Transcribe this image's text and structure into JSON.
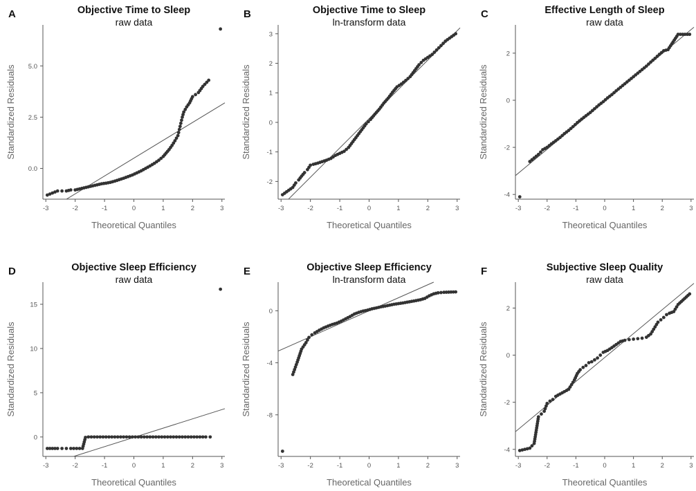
{
  "chart_data": [
    {
      "id": "A",
      "type": "scatter",
      "panel_label": "A",
      "title": "Objective Time to Sleep",
      "subtitle": "raw data",
      "xlabel": "Theoretical Quantiles",
      "ylabel": "Standardized Residuals",
      "xlim": [
        -3.1,
        3.1
      ],
      "ylim": [
        -1.5,
        7.0
      ],
      "x_ticks": [
        -3,
        -2,
        -1,
        0,
        1,
        2,
        3
      ],
      "x_tick_labels": [
        "-3",
        "-2",
        "-1",
        "0",
        "1",
        "2",
        "3"
      ],
      "y_ticks": [
        0,
        2.5,
        5
      ],
      "y_tick_labels": [
        "0.0",
        "2.5",
        "5.0"
      ],
      "reference_line": [
        [
          -3.1,
          -2.2
        ],
        [
          3.1,
          3.2
        ]
      ],
      "points": [
        [
          -2.95,
          -1.3
        ],
        [
          -2.6,
          -1.1
        ],
        [
          -2.45,
          -1.1
        ],
        [
          -2.3,
          -1.1
        ],
        [
          -2.15,
          -1.05
        ],
        [
          -2.0,
          -1.05
        ],
        [
          -1.85,
          -1.0
        ],
        [
          -1.7,
          -0.95
        ],
        [
          -1.55,
          -0.9
        ],
        [
          -1.4,
          -0.85
        ],
        [
          -1.25,
          -0.8
        ],
        [
          -1.1,
          -0.75
        ],
        [
          -0.95,
          -0.72
        ],
        [
          -0.8,
          -0.68
        ],
        [
          -0.65,
          -0.62
        ],
        [
          -0.5,
          -0.55
        ],
        [
          -0.35,
          -0.48
        ],
        [
          -0.2,
          -0.4
        ],
        [
          -0.05,
          -0.32
        ],
        [
          0.1,
          -0.22
        ],
        [
          0.25,
          -0.12
        ],
        [
          0.4,
          0.0
        ],
        [
          0.55,
          0.12
        ],
        [
          0.7,
          0.25
        ],
        [
          0.85,
          0.4
        ],
        [
          1.0,
          0.58
        ],
        [
          1.1,
          0.75
        ],
        [
          1.2,
          0.92
        ],
        [
          1.3,
          1.12
        ],
        [
          1.4,
          1.35
        ],
        [
          1.5,
          1.6
        ],
        [
          1.55,
          1.9
        ],
        [
          1.6,
          2.2
        ],
        [
          1.65,
          2.5
        ],
        [
          1.7,
          2.75
        ],
        [
          1.8,
          3.0
        ],
        [
          1.9,
          3.2
        ],
        [
          2.0,
          3.5
        ],
        [
          2.1,
          3.6
        ],
        [
          2.2,
          3.7
        ],
        [
          2.35,
          4.0
        ],
        [
          2.55,
          4.3
        ],
        [
          2.95,
          6.8
        ]
      ]
    },
    {
      "id": "B",
      "type": "scatter",
      "panel_label": "B",
      "title": "Objective Time to Sleep",
      "subtitle": "ln-transform data",
      "xlabel": "Theoretical Quantiles",
      "ylabel": "Standardized Residuals",
      "xlim": [
        -3.1,
        3.1
      ],
      "ylim": [
        -2.6,
        3.3
      ],
      "x_ticks": [
        -3,
        -2,
        -1,
        0,
        1,
        2,
        3
      ],
      "x_tick_labels": [
        "-3",
        "-2",
        "-1",
        "0",
        "1",
        "2",
        "3"
      ],
      "y_ticks": [
        -2,
        -1,
        0,
        1,
        2,
        3
      ],
      "y_tick_labels": [
        "-2",
        "-1",
        "0",
        "1",
        "2",
        "3"
      ],
      "reference_line": [
        [
          -3.1,
          -2.95
        ],
        [
          3.1,
          3.2
        ]
      ],
      "points": [
        [
          -2.95,
          -2.45
        ],
        [
          -2.6,
          -2.2
        ],
        [
          -2.5,
          -2.05
        ],
        [
          -2.4,
          -1.95
        ],
        [
          -2.3,
          -1.82
        ],
        [
          -2.2,
          -1.7
        ],
        [
          -2.1,
          -1.6
        ],
        [
          -2.0,
          -1.45
        ],
        [
          -1.9,
          -1.42
        ],
        [
          -1.75,
          -1.38
        ],
        [
          -1.6,
          -1.33
        ],
        [
          -1.45,
          -1.28
        ],
        [
          -1.3,
          -1.22
        ],
        [
          -1.15,
          -1.12
        ],
        [
          -1.0,
          -1.05
        ],
        [
          -0.85,
          -0.98
        ],
        [
          -0.7,
          -0.85
        ],
        [
          -0.55,
          -0.65
        ],
        [
          -0.4,
          -0.45
        ],
        [
          -0.25,
          -0.25
        ],
        [
          -0.1,
          -0.05
        ],
        [
          0.05,
          0.1
        ],
        [
          0.2,
          0.28
        ],
        [
          0.35,
          0.45
        ],
        [
          0.5,
          0.65
        ],
        [
          0.65,
          0.82
        ],
        [
          0.8,
          1.02
        ],
        [
          0.95,
          1.2
        ],
        [
          1.1,
          1.3
        ],
        [
          1.25,
          1.42
        ],
        [
          1.4,
          1.55
        ],
        [
          1.55,
          1.75
        ],
        [
          1.7,
          1.95
        ],
        [
          1.85,
          2.1
        ],
        [
          2.0,
          2.2
        ],
        [
          2.15,
          2.3
        ],
        [
          2.3,
          2.45
        ],
        [
          2.45,
          2.6
        ],
        [
          2.6,
          2.75
        ],
        [
          2.95,
          3.0
        ]
      ]
    },
    {
      "id": "C",
      "type": "scatter",
      "panel_label": "C",
      "title": "Effective Length of Sleep",
      "subtitle": "raw data",
      "xlabel": "Theoretical Quantiles",
      "ylabel": "Standardized Residuals",
      "xlim": [
        -3.1,
        3.1
      ],
      "ylim": [
        -4.2,
        3.2
      ],
      "x_ticks": [
        -3,
        -2,
        -1,
        0,
        1,
        2,
        3
      ],
      "x_tick_labels": [
        "-3",
        "-2",
        "-1",
        "0",
        "1",
        "2",
        "3"
      ],
      "y_ticks": [
        -4,
        -2,
        0,
        2
      ],
      "y_tick_labels": [
        "-4",
        "-2",
        "0",
        "2"
      ],
      "reference_line": [
        [
          -3.1,
          -3.2
        ],
        [
          3.1,
          3.1
        ]
      ],
      "points": [
        [
          -2.95,
          -4.1
        ],
        [
          -2.6,
          -2.6
        ],
        [
          -2.45,
          -2.45
        ],
        [
          -2.3,
          -2.3
        ],
        [
          -2.15,
          -2.1
        ],
        [
          -2.0,
          -2.0
        ],
        [
          -1.85,
          -1.85
        ],
        [
          -1.7,
          -1.72
        ],
        [
          -1.55,
          -1.58
        ],
        [
          -1.4,
          -1.42
        ],
        [
          -1.25,
          -1.28
        ],
        [
          -1.1,
          -1.12
        ],
        [
          -0.95,
          -0.95
        ],
        [
          -0.8,
          -0.8
        ],
        [
          -0.65,
          -0.66
        ],
        [
          -0.5,
          -0.52
        ],
        [
          -0.35,
          -0.36
        ],
        [
          -0.2,
          -0.2
        ],
        [
          -0.05,
          -0.06
        ],
        [
          0.1,
          0.1
        ],
        [
          0.25,
          0.24
        ],
        [
          0.4,
          0.4
        ],
        [
          0.55,
          0.55
        ],
        [
          0.7,
          0.7
        ],
        [
          0.85,
          0.85
        ],
        [
          1.0,
          1.0
        ],
        [
          1.15,
          1.15
        ],
        [
          1.3,
          1.3
        ],
        [
          1.45,
          1.45
        ],
        [
          1.6,
          1.62
        ],
        [
          1.75,
          1.78
        ],
        [
          1.9,
          1.95
        ],
        [
          2.05,
          2.1
        ],
        [
          2.2,
          2.15
        ],
        [
          2.55,
          2.8
        ],
        [
          2.95,
          2.8
        ]
      ]
    },
    {
      "id": "D",
      "type": "scatter",
      "panel_label": "D",
      "title": "Objective Sleep Efficiency",
      "subtitle": "raw data",
      "xlabel": "Theoretical Quantiles",
      "ylabel": "Standardized Residuals",
      "xlim": [
        -3.1,
        3.1
      ],
      "ylim": [
        -2.2,
        17.5
      ],
      "x_ticks": [
        -3,
        -2,
        -1,
        0,
        1,
        2,
        3
      ],
      "x_tick_labels": [
        "-3",
        "-2",
        "-1",
        "0",
        "1",
        "2",
        "3"
      ],
      "y_ticks": [
        0,
        5,
        10,
        15
      ],
      "y_tick_labels": [
        "0",
        "5",
        "10",
        "15"
      ],
      "reference_line": [
        [
          -3.1,
          -3.3
        ],
        [
          3.1,
          3.2
        ]
      ],
      "points": [
        [
          -2.95,
          -1.3
        ],
        [
          -2.6,
          -1.3
        ],
        [
          -2.45,
          -1.3
        ],
        [
          -2.3,
          -1.3
        ],
        [
          -2.15,
          -1.3
        ],
        [
          -2.05,
          -1.3
        ],
        [
          -1.95,
          -1.3
        ],
        [
          -1.85,
          -1.3
        ],
        [
          -1.75,
          -1.3
        ],
        [
          -1.65,
          -0.05
        ],
        [
          -1.55,
          0.0
        ],
        [
          -1.45,
          0.0
        ],
        [
          -1.35,
          0.0
        ],
        [
          -1.25,
          0.0
        ],
        [
          -1.15,
          0.0
        ],
        [
          -1.05,
          0.0
        ],
        [
          -0.95,
          0.0
        ],
        [
          -0.85,
          0.0
        ],
        [
          -0.75,
          0.0
        ],
        [
          -0.65,
          0.0
        ],
        [
          -0.55,
          0.0
        ],
        [
          -0.45,
          0.0
        ],
        [
          -0.35,
          0.0
        ],
        [
          -0.25,
          0.0
        ],
        [
          -0.15,
          0.0
        ],
        [
          -0.05,
          0.0
        ],
        [
          0.05,
          0.0
        ],
        [
          0.15,
          0.0
        ],
        [
          0.25,
          0.0
        ],
        [
          0.35,
          0.0
        ],
        [
          0.45,
          0.0
        ],
        [
          0.55,
          0.0
        ],
        [
          0.65,
          0.0
        ],
        [
          0.75,
          0.0
        ],
        [
          0.85,
          0.0
        ],
        [
          0.95,
          0.0
        ],
        [
          1.05,
          0.0
        ],
        [
          1.15,
          0.0
        ],
        [
          1.25,
          0.0
        ],
        [
          1.35,
          0.0
        ],
        [
          1.45,
          0.0
        ],
        [
          1.55,
          0.0
        ],
        [
          1.65,
          0.0
        ],
        [
          1.75,
          0.0
        ],
        [
          1.85,
          0.0
        ],
        [
          1.95,
          0.0
        ],
        [
          2.05,
          0.0
        ],
        [
          2.15,
          0.0
        ],
        [
          2.25,
          0.0
        ],
        [
          2.45,
          0.0
        ],
        [
          2.6,
          0.0
        ],
        [
          2.95,
          16.7
        ]
      ]
    },
    {
      "id": "E",
      "type": "scatter",
      "panel_label": "E",
      "title": "Objective Sleep Efficiency",
      "subtitle": "ln-transform data",
      "xlabel": "Theoretical Quantiles",
      "ylabel": "Standardized Residuals",
      "xlim": [
        -3.1,
        3.1
      ],
      "ylim": [
        -11.2,
        2.2
      ],
      "x_ticks": [
        -3,
        -2,
        -1,
        0,
        1,
        2,
        3
      ],
      "x_tick_labels": [
        "-3",
        "-2",
        "-1",
        "0",
        "1",
        "2",
        "3"
      ],
      "y_ticks": [
        -8,
        -4,
        0
      ],
      "y_tick_labels": [
        "-8",
        "-4",
        "0"
      ],
      "reference_line": [
        [
          -3.1,
          -3.1
        ],
        [
          2.2,
          2.2
        ]
      ],
      "points": [
        [
          -2.95,
          -10.8
        ],
        [
          -2.6,
          -4.9
        ],
        [
          -2.45,
          -3.95
        ],
        [
          -2.3,
          -2.95
        ],
        [
          -2.15,
          -2.45
        ],
        [
          -2.05,
          -2.05
        ],
        [
          -1.95,
          -1.85
        ],
        [
          -1.85,
          -1.7
        ],
        [
          -1.7,
          -1.5
        ],
        [
          -1.55,
          -1.32
        ],
        [
          -1.4,
          -1.18
        ],
        [
          -1.25,
          -1.05
        ],
        [
          -1.1,
          -0.95
        ],
        [
          -0.95,
          -0.8
        ],
        [
          -0.8,
          -0.62
        ],
        [
          -0.65,
          -0.45
        ],
        [
          -0.5,
          -0.25
        ],
        [
          -0.35,
          -0.12
        ],
        [
          -0.2,
          -0.02
        ],
        [
          -0.05,
          0.05
        ],
        [
          0.1,
          0.15
        ],
        [
          0.25,
          0.22
        ],
        [
          0.4,
          0.3
        ],
        [
          0.55,
          0.36
        ],
        [
          0.7,
          0.43
        ],
        [
          0.85,
          0.5
        ],
        [
          1.0,
          0.55
        ],
        [
          1.15,
          0.6
        ],
        [
          1.3,
          0.66
        ],
        [
          1.45,
          0.72
        ],
        [
          1.6,
          0.78
        ],
        [
          1.75,
          0.85
        ],
        [
          1.9,
          0.95
        ],
        [
          2.05,
          1.15
        ],
        [
          2.2,
          1.3
        ],
        [
          2.35,
          1.38
        ],
        [
          2.55,
          1.42
        ],
        [
          2.95,
          1.45
        ]
      ]
    },
    {
      "id": "F",
      "type": "scatter",
      "panel_label": "F",
      "title": "Subjective Sleep Quality",
      "subtitle": "raw data",
      "xlabel": "Theoretical Quantiles",
      "ylabel": "Standardized Residuals",
      "xlim": [
        -3.1,
        3.1
      ],
      "ylim": [
        -4.3,
        3.1
      ],
      "x_ticks": [
        -3,
        -2,
        -1,
        0,
        1,
        2,
        3
      ],
      "x_tick_labels": [
        "-3",
        "-2",
        "-1",
        "0",
        "1",
        "2",
        "3"
      ],
      "y_ticks": [
        -4,
        -2,
        0,
        2
      ],
      "y_tick_labels": [
        "-4",
        "-2",
        "0",
        "2"
      ],
      "reference_line": [
        [
          -3.1,
          -3.25
        ],
        [
          3.1,
          3.05
        ]
      ],
      "points": [
        [
          -2.95,
          -4.05
        ],
        [
          -2.6,
          -3.95
        ],
        [
          -2.45,
          -3.75
        ],
        [
          -2.3,
          -2.62
        ],
        [
          -2.2,
          -2.5
        ],
        [
          -2.1,
          -2.38
        ],
        [
          -2.0,
          -2.05
        ],
        [
          -1.9,
          -1.95
        ],
        [
          -1.8,
          -1.88
        ],
        [
          -1.7,
          -1.75
        ],
        [
          -1.55,
          -1.65
        ],
        [
          -1.4,
          -1.55
        ],
        [
          -1.25,
          -1.45
        ],
        [
          -1.15,
          -1.25
        ],
        [
          -1.05,
          -1.05
        ],
        [
          -0.95,
          -0.78
        ],
        [
          -0.85,
          -0.62
        ],
        [
          -0.75,
          -0.52
        ],
        [
          -0.65,
          -0.44
        ],
        [
          -0.55,
          -0.32
        ],
        [
          -0.45,
          -0.28
        ],
        [
          -0.35,
          -0.2
        ],
        [
          -0.25,
          -0.12
        ],
        [
          -0.15,
          0.0
        ],
        [
          -0.05,
          0.12
        ],
        [
          0.1,
          0.2
        ],
        [
          0.25,
          0.32
        ],
        [
          0.4,
          0.45
        ],
        [
          0.55,
          0.58
        ],
        [
          0.7,
          0.63
        ],
        [
          0.85,
          0.66
        ],
        [
          1.0,
          0.68
        ],
        [
          1.15,
          0.7
        ],
        [
          1.3,
          0.72
        ],
        [
          1.45,
          0.76
        ],
        [
          1.6,
          0.9
        ],
        [
          1.75,
          1.2
        ],
        [
          1.85,
          1.4
        ],
        [
          1.95,
          1.5
        ],
        [
          2.05,
          1.6
        ],
        [
          2.15,
          1.72
        ],
        [
          2.25,
          1.78
        ],
        [
          2.4,
          1.85
        ],
        [
          2.55,
          2.15
        ],
        [
          2.95,
          2.6
        ]
      ]
    }
  ]
}
